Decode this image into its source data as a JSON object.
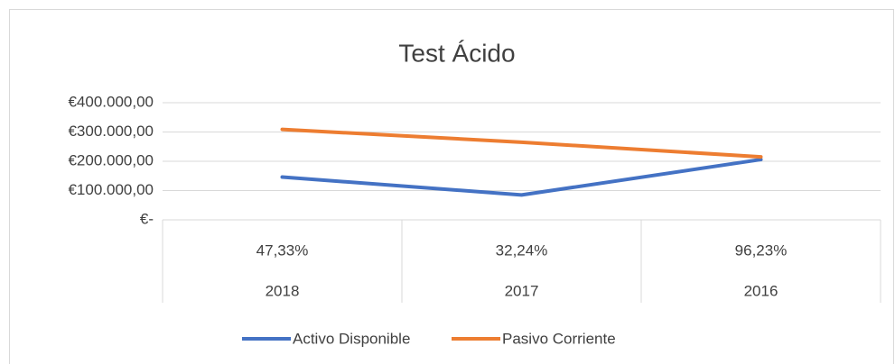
{
  "chart_data": {
    "type": "line",
    "title": "Test Ácido",
    "categories": [
      "2018",
      "2017",
      "2016"
    ],
    "category_ratios": [
      "47,33%",
      "32,24%",
      "96,23%"
    ],
    "series": [
      {
        "name": "Activo Disponible",
        "color": "#4472c4",
        "values": [
          146000,
          85000,
          206000
        ]
      },
      {
        "name": "Pasivo Corriente",
        "color": "#ed7d31",
        "values": [
          309000,
          265000,
          215000
        ]
      }
    ],
    "ylim": [
      0,
      400000
    ],
    "yticks": [
      {
        "value": 0,
        "label": "€-"
      },
      {
        "value": 100000,
        "label": "€100.000,00"
      },
      {
        "value": 200000,
        "label": "€200.000,00"
      },
      {
        "value": 300000,
        "label": "€300.000,00"
      },
      {
        "value": 400000,
        "label": "€400.000,00"
      }
    ],
    "grid": true,
    "legend": "bottom"
  }
}
